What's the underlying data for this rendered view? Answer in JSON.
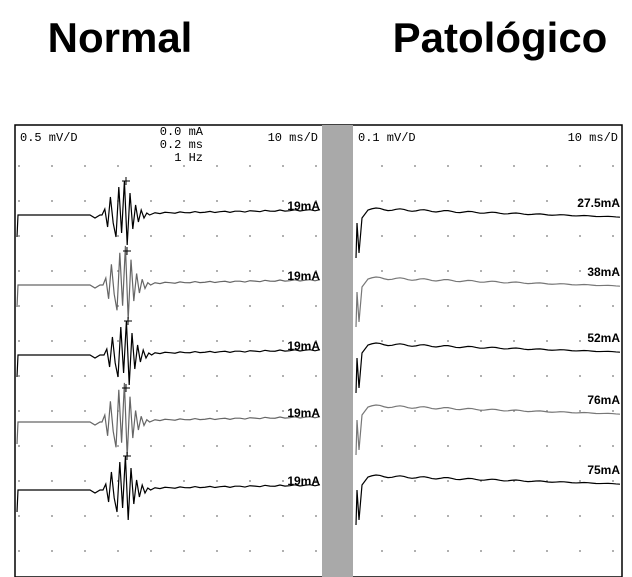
{
  "titles": {
    "left": "Normal",
    "right": "Patológico"
  },
  "panels": [
    {
      "gain": "0.5 mV/D",
      "stim": [
        "0.0 mA",
        "0.2 ms",
        "1 Hz"
      ],
      "sweep": "10 ms/D",
      "traces": [
        "19mA",
        "19mA",
        "19mA",
        "19mA",
        "19mA"
      ]
    },
    {
      "gain": "0.1 mV/D",
      "sweep": "10 ms/D",
      "traces": [
        "27.5mA",
        "38mA",
        "52mA",
        "76mA",
        "75mA"
      ]
    }
  ]
}
